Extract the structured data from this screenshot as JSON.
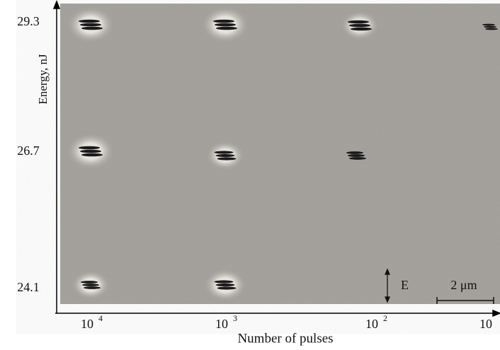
{
  "figure": {
    "y_axis": {
      "label": "Energy, nJ",
      "ticks": [
        "29.3",
        "26.7",
        "24.1"
      ]
    },
    "x_axis": {
      "label": "Number of pulses",
      "ticks": [
        {
          "base": "10",
          "exp": "4"
        },
        {
          "base": "10",
          "exp": "3"
        },
        {
          "base": "10",
          "exp": "2"
        },
        {
          "base": "10"
        }
      ]
    },
    "annotations": {
      "energy_marker": "E",
      "scale_bar": "2 μm"
    }
  }
}
